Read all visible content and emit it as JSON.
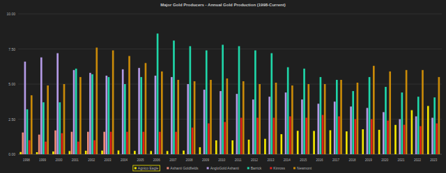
{
  "chart_data": {
    "type": "bar",
    "title": "Major Gold Producers - Annual Gold Production (1998-Current)",
    "categories": [
      "1998",
      "1999",
      "2000",
      "2001",
      "2002",
      "2003",
      "2004",
      "2005",
      "2006",
      "2007",
      "2008",
      "2009",
      "2010",
      "2011",
      "2012",
      "2013",
      "2014",
      "2015",
      "2016",
      "2017",
      "2018",
      "2019",
      "2020",
      "2021",
      "2022",
      "2023"
    ],
    "series": [
      {
        "name": "Agnico Eagle",
        "color": "#f2e600",
        "values": [
          0.16,
          0.15,
          0.2,
          0.23,
          0.25,
          0.26,
          0.27,
          0.24,
          0.23,
          0.23,
          0.26,
          0.5,
          0.99,
          0.99,
          1.04,
          1.1,
          1.43,
          1.67,
          1.66,
          1.71,
          1.63,
          1.78,
          1.74,
          2.09,
          3.14,
          3.44
        ]
      },
      {
        "name": "Ashanti Goldfields",
        "color": "#f08c7a",
        "values": [
          1.55,
          1.4,
          1.7,
          1.6,
          1.6,
          1.6,
          null,
          null,
          null,
          null,
          null,
          null,
          null,
          null,
          null,
          null,
          null,
          null,
          null,
          null,
          null,
          null,
          null,
          null,
          null,
          null
        ]
      },
      {
        "name": "AngloGold Ashanti",
        "color": "#b49ae6",
        "values": [
          6.6,
          6.9,
          7.2,
          6.0,
          5.8,
          5.6,
          6.05,
          6.15,
          5.6,
          5.5,
          5.0,
          4.6,
          4.5,
          4.3,
          3.9,
          4.1,
          4.4,
          3.9,
          3.6,
          3.75,
          3.4,
          3.3,
          3.0,
          2.5,
          2.7,
          2.6
        ]
      },
      {
        "name": "Barrick",
        "color": "#1fd6a8",
        "values": [
          3.2,
          3.7,
          3.7,
          6.1,
          5.7,
          5.5,
          5.0,
          5.5,
          8.6,
          8.1,
          7.7,
          7.4,
          7.8,
          7.7,
          7.4,
          7.2,
          6.2,
          6.1,
          5.5,
          5.3,
          4.5,
          5.5,
          4.8,
          4.4,
          4.1,
          4.05
        ]
      },
      {
        "name": "Kinross",
        "color": "#e0201a",
        "values": [
          1.0,
          0.9,
          1.5,
          0.9,
          1.0,
          1.6,
          1.6,
          1.6,
          1.6,
          1.6,
          1.9,
          2.2,
          2.3,
          2.6,
          2.6,
          2.6,
          2.7,
          2.6,
          2.8,
          2.7,
          2.5,
          2.5,
          2.4,
          2.1,
          2.0,
          2.2
        ]
      },
      {
        "name": "Newmont",
        "color": "#c98a08",
        "values": [
          4.2,
          4.9,
          5.0,
          5.5,
          7.6,
          7.4,
          7.0,
          6.5,
          5.9,
          5.3,
          5.2,
          5.3,
          5.4,
          5.2,
          5.0,
          5.1,
          4.9,
          5.0,
          5.0,
          5.3,
          5.1,
          6.3,
          5.9,
          6.0,
          6.0,
          5.5
        ]
      }
    ],
    "ylim": [
      0,
      10
    ],
    "yticks": [
      {
        "value": 0,
        "label": "0.00"
      },
      {
        "value": 2.5,
        "label": "2.50"
      },
      {
        "value": 5,
        "label": "5.00"
      },
      {
        "value": 7.5,
        "label": "7.50"
      },
      {
        "value": 10,
        "label": "10.00"
      }
    ],
    "grid": true,
    "legend": "bottom"
  }
}
